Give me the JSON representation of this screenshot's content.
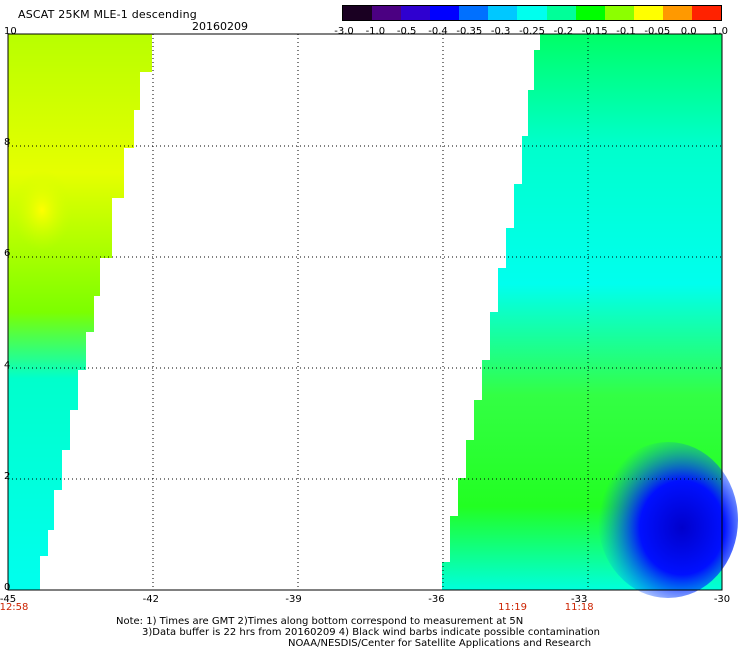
{
  "header": {
    "title": "ASCAT 25KM MLE-1 descending",
    "date": "20160209"
  },
  "colorbar": {
    "tick_labels": [
      "-3.0",
      "-1.0",
      "-0.5",
      "-0.4",
      "-0.35",
      "-0.3",
      "-0.25",
      "-0.2",
      "-0.15",
      "-0.1",
      "-0.05",
      "0.0",
      "1.0"
    ],
    "colors": [
      "#1a0022",
      "#4b0082",
      "#2f00d0",
      "#0000ff",
      "#0070ff",
      "#00c8ff",
      "#00ffee",
      "#00ff99",
      "#00ff00",
      "#8cff00",
      "#ffff00",
      "#ff9900",
      "#ff2200"
    ]
  },
  "map": {
    "x_ticks": [
      "-45",
      "-42",
      "-39",
      "-36",
      "-33",
      "-30"
    ],
    "y_ticks": [
      "0",
      "2",
      "4",
      "6",
      "8",
      "10"
    ],
    "lon_range": [
      -45,
      -30
    ],
    "lat_range": [
      0,
      10
    ],
    "time_labels": [
      {
        "text": "12:58",
        "lon": -45
      },
      {
        "text": "11:19",
        "lon": -34.4
      },
      {
        "text": "11:18",
        "lon": -33
      }
    ]
  },
  "footer": {
    "line1": "Note: 1) Times are GMT 2)Times along bottom correspond to measurement at 5N",
    "line2": "3)Data buffer is 22 hrs from 20160209 4) Black wind barbs indicate possible contamination",
    "line3": "NOAA/NESDIS/Center for Satellite Applications and Research"
  }
}
